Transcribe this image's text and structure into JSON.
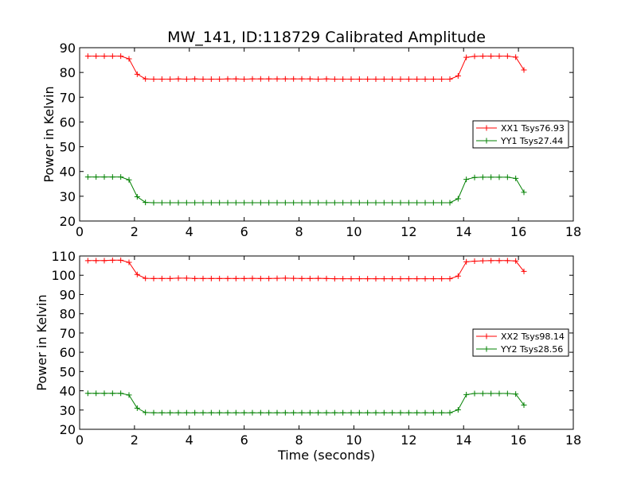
{
  "figure": {
    "title": "MW_141, ID:118729 Calibrated Amplitude",
    "xlabel": "Time (seconds)"
  },
  "chart_data": [
    {
      "type": "line",
      "title": "MW_141, ID:118729 Calibrated Amplitude",
      "xlabel": "",
      "ylabel": "Power in Kelvin",
      "xlim": [
        0,
        18
      ],
      "ylim": [
        20,
        90
      ],
      "xticks": [
        "0",
        "2",
        "4",
        "6",
        "8",
        "10",
        "12",
        "14",
        "16",
        "18"
      ],
      "yticks": [
        "20",
        "30",
        "40",
        "50",
        "60",
        "70",
        "80",
        "90"
      ],
      "grid": false,
      "legend_position": "right",
      "series": [
        {
          "name": "XX1 Tsys76.93",
          "color": "#ff0000",
          "marker": "plus",
          "x": [
            0.3,
            0.6,
            0.9,
            1.2,
            1.5,
            1.8,
            2.1,
            2.4,
            2.7,
            3.0,
            3.3,
            3.6,
            3.9,
            4.2,
            4.5,
            4.8,
            5.1,
            5.4,
            5.7,
            6.0,
            6.3,
            6.6,
            6.9,
            7.2,
            7.5,
            7.8,
            8.1,
            8.4,
            8.7,
            9.0,
            9.3,
            9.6,
            9.9,
            10.2,
            10.5,
            10.8,
            11.1,
            11.4,
            11.7,
            12.0,
            12.3,
            12.6,
            12.9,
            13.2,
            13.5,
            13.8,
            14.1,
            14.4,
            14.7,
            15.0,
            15.3,
            15.6,
            15.9,
            16.2
          ],
          "y": [
            86.6,
            86.6,
            86.6,
            86.6,
            86.6,
            85.5,
            79.3,
            77.4,
            77.3,
            77.3,
            77.3,
            77.4,
            77.3,
            77.4,
            77.3,
            77.3,
            77.3,
            77.4,
            77.4,
            77.3,
            77.4,
            77.4,
            77.4,
            77.4,
            77.4,
            77.4,
            77.4,
            77.4,
            77.3,
            77.4,
            77.3,
            77.3,
            77.3,
            77.3,
            77.3,
            77.3,
            77.3,
            77.3,
            77.3,
            77.3,
            77.3,
            77.3,
            77.3,
            77.3,
            77.3,
            78.6,
            86.1,
            86.5,
            86.6,
            86.6,
            86.6,
            86.6,
            86.2,
            81.0
          ]
        },
        {
          "name": "YY1 Tsys27.44",
          "color": "#008000",
          "marker": "plus",
          "x": [
            0.3,
            0.6,
            0.9,
            1.2,
            1.5,
            1.8,
            2.1,
            2.4,
            2.7,
            3.0,
            3.3,
            3.6,
            3.9,
            4.2,
            4.5,
            4.8,
            5.1,
            5.4,
            5.7,
            6.0,
            6.3,
            6.6,
            6.9,
            7.2,
            7.5,
            7.8,
            8.1,
            8.4,
            8.7,
            9.0,
            9.3,
            9.6,
            9.9,
            10.2,
            10.5,
            10.8,
            11.1,
            11.4,
            11.7,
            12.0,
            12.3,
            12.6,
            12.9,
            13.2,
            13.5,
            13.8,
            14.1,
            14.4,
            14.7,
            15.0,
            15.3,
            15.6,
            15.9,
            16.2
          ],
          "y": [
            37.8,
            37.8,
            37.8,
            37.8,
            37.8,
            36.6,
            29.8,
            27.5,
            27.4,
            27.4,
            27.4,
            27.4,
            27.4,
            27.4,
            27.4,
            27.4,
            27.4,
            27.4,
            27.4,
            27.4,
            27.4,
            27.4,
            27.4,
            27.4,
            27.4,
            27.4,
            27.4,
            27.4,
            27.4,
            27.4,
            27.4,
            27.4,
            27.4,
            27.4,
            27.4,
            27.4,
            27.4,
            27.4,
            27.4,
            27.4,
            27.4,
            27.4,
            27.4,
            27.4,
            27.4,
            29.0,
            36.8,
            37.6,
            37.7,
            37.7,
            37.7,
            37.7,
            37.2,
            31.6
          ]
        }
      ]
    },
    {
      "type": "line",
      "title": "",
      "xlabel": "Time (seconds)",
      "ylabel": "Power in Kelvin",
      "xlim": [
        0,
        18
      ],
      "ylim": [
        20,
        110
      ],
      "xticks": [
        "0",
        "2",
        "4",
        "6",
        "8",
        "10",
        "12",
        "14",
        "16",
        "18"
      ],
      "yticks": [
        "20",
        "30",
        "40",
        "50",
        "60",
        "70",
        "80",
        "90",
        "100",
        "110"
      ],
      "grid": false,
      "legend_position": "right",
      "series": [
        {
          "name": "XX2 Tsys98.14",
          "color": "#ff0000",
          "marker": "plus",
          "x": [
            0.3,
            0.6,
            0.9,
            1.2,
            1.5,
            1.8,
            2.1,
            2.4,
            2.7,
            3.0,
            3.3,
            3.6,
            3.9,
            4.2,
            4.5,
            4.8,
            5.1,
            5.4,
            5.7,
            6.0,
            6.3,
            6.6,
            6.9,
            7.2,
            7.5,
            7.8,
            8.1,
            8.4,
            8.7,
            9.0,
            9.3,
            9.6,
            9.9,
            10.2,
            10.5,
            10.8,
            11.1,
            11.4,
            11.7,
            12.0,
            12.3,
            12.6,
            12.9,
            13.2,
            13.5,
            13.8,
            14.1,
            14.4,
            14.7,
            15.0,
            15.3,
            15.6,
            15.9,
            16.2
          ],
          "y": [
            107.6,
            107.6,
            107.6,
            107.8,
            107.8,
            106.7,
            100.4,
            98.4,
            98.3,
            98.3,
            98.3,
            98.5,
            98.5,
            98.3,
            98.3,
            98.3,
            98.3,
            98.3,
            98.3,
            98.3,
            98.4,
            98.3,
            98.3,
            98.4,
            98.5,
            98.4,
            98.3,
            98.3,
            98.4,
            98.3,
            98.2,
            98.2,
            98.2,
            98.2,
            98.2,
            98.2,
            98.2,
            98.2,
            98.2,
            98.2,
            98.2,
            98.2,
            98.2,
            98.2,
            98.2,
            99.6,
            107.0,
            107.3,
            107.5,
            107.6,
            107.6,
            107.6,
            107.4,
            102.0
          ]
        },
        {
          "name": "YY2 Tsys28.56",
          "color": "#008000",
          "marker": "plus",
          "x": [
            0.3,
            0.6,
            0.9,
            1.2,
            1.5,
            1.8,
            2.1,
            2.4,
            2.7,
            3.0,
            3.3,
            3.6,
            3.9,
            4.2,
            4.5,
            4.8,
            5.1,
            5.4,
            5.7,
            6.0,
            6.3,
            6.6,
            6.9,
            7.2,
            7.5,
            7.8,
            8.1,
            8.4,
            8.7,
            9.0,
            9.3,
            9.6,
            9.9,
            10.2,
            10.5,
            10.8,
            11.1,
            11.4,
            11.7,
            12.0,
            12.3,
            12.6,
            12.9,
            13.2,
            13.5,
            13.8,
            14.1,
            14.4,
            14.7,
            15.0,
            15.3,
            15.6,
            15.9,
            16.2
          ],
          "y": [
            38.7,
            38.7,
            38.7,
            38.7,
            38.7,
            37.8,
            31.0,
            28.7,
            28.6,
            28.6,
            28.6,
            28.6,
            28.6,
            28.6,
            28.6,
            28.6,
            28.6,
            28.6,
            28.6,
            28.6,
            28.6,
            28.6,
            28.6,
            28.6,
            28.6,
            28.6,
            28.6,
            28.6,
            28.6,
            28.6,
            28.6,
            28.6,
            28.6,
            28.6,
            28.6,
            28.6,
            28.6,
            28.6,
            28.6,
            28.6,
            28.6,
            28.6,
            28.6,
            28.6,
            28.6,
            30.1,
            38.0,
            38.6,
            38.6,
            38.6,
            38.6,
            38.6,
            38.3,
            32.6
          ]
        }
      ]
    }
  ]
}
